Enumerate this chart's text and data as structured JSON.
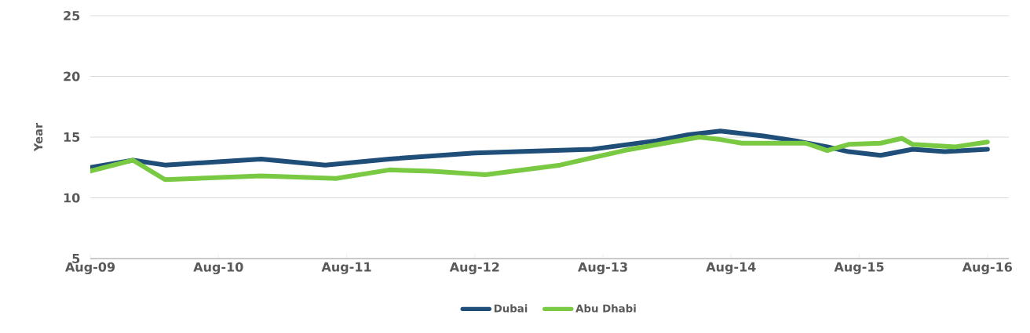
{
  "chart_data": {
    "type": "line",
    "ylabel": "Year",
    "xlim": [
      "2009-08",
      "2016-10"
    ],
    "ylim": [
      5,
      25
    ],
    "yticks": [
      5,
      10,
      15,
      20,
      25
    ],
    "xticks": [
      {
        "value": "2009-08",
        "label": "Aug-09"
      },
      {
        "value": "2010-08",
        "label": "Aug-10"
      },
      {
        "value": "2011-08",
        "label": "Aug-11"
      },
      {
        "value": "2012-08",
        "label": "Aug-12"
      },
      {
        "value": "2013-08",
        "label": "Aug-13"
      },
      {
        "value": "2014-08",
        "label": "Aug-14"
      },
      {
        "value": "2015-08",
        "label": "Aug-15"
      },
      {
        "value": "2016-08",
        "label": "Aug-16"
      }
    ],
    "grid": "y",
    "legend": "bottom",
    "marker": "none",
    "line_style": "solid",
    "series": [
      {
        "name": "Dubai",
        "color": "#1f4e79",
        "x": [
          "2009-08",
          "2009-12",
          "2010-03",
          "2010-12",
          "2011-06",
          "2011-12",
          "2012-08",
          "2013-07",
          "2014-01",
          "2014-04",
          "2014-07",
          "2014-11",
          "2015-02",
          "2015-05",
          "2015-07",
          "2015-10",
          "2016-01",
          "2016-04",
          "2016-08"
        ],
        "values": [
          12.5,
          13.1,
          12.7,
          13.2,
          12.7,
          13.2,
          13.7,
          14.0,
          14.7,
          15.2,
          15.5,
          15.1,
          14.7,
          14.2,
          13.8,
          13.5,
          14.0,
          13.8,
          14.0
        ]
      },
      {
        "name": "Abu Dhabi",
        "color": "#7ac943",
        "x": [
          "2009-08",
          "2009-12",
          "2010-03",
          "2010-12",
          "2011-07",
          "2011-12",
          "2012-04",
          "2012-09",
          "2013-04",
          "2013-10",
          "2014-05",
          "2014-07",
          "2014-09",
          "2015-03",
          "2015-05",
          "2015-07",
          "2015-10",
          "2015-12",
          "2016-01",
          "2016-05",
          "2016-08"
        ],
        "values": [
          12.2,
          13.1,
          11.5,
          11.8,
          11.6,
          12.3,
          12.2,
          11.9,
          12.7,
          13.9,
          15.0,
          14.8,
          14.5,
          14.5,
          13.9,
          14.4,
          14.5,
          14.9,
          14.4,
          14.2,
          14.6
        ]
      }
    ]
  }
}
